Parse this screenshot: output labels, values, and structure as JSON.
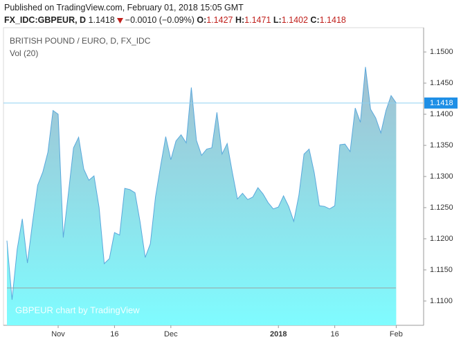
{
  "header": {
    "published": "Published on TradingView.com, February 01, 2018 15:05 GMT",
    "symbol": "FX_IDC:GBPEUR, D",
    "price": "1.1418",
    "change": "−0.0010 (−0.09%)",
    "ohlc": [
      {
        "label": "O:",
        "value": "1.1427"
      },
      {
        "label": "H:",
        "value": "1.1471"
      },
      {
        "label": "L:",
        "value": "1.1402"
      },
      {
        "label": "C:",
        "value": "1.1418"
      }
    ]
  },
  "chart_data": {
    "type": "area",
    "title": "BRITISH POUND / EURO, D, FX_IDC",
    "subtitle": "Vol (20)",
    "watermark": "GBPEUR chart by TradingView",
    "color": "#5aa8dc",
    "x": [
      0,
      1,
      2,
      3,
      4,
      5,
      6,
      7,
      8,
      9,
      10,
      11,
      12,
      13,
      14,
      15,
      16,
      17,
      18,
      19,
      20,
      21,
      22,
      23,
      24,
      25,
      26,
      27,
      28,
      29,
      30,
      31,
      32,
      33,
      34,
      35,
      36,
      37,
      38,
      39,
      40,
      41,
      42,
      43,
      44,
      45,
      46,
      47,
      48,
      49,
      50,
      51,
      52,
      53,
      54,
      55,
      56,
      57,
      58,
      59,
      60,
      61,
      62,
      63,
      64,
      65,
      66,
      67,
      68,
      69,
      70,
      71,
      72,
      73,
      74,
      75,
      76
    ],
    "values": [
      1.1197,
      1.1102,
      1.1183,
      1.1232,
      1.1161,
      1.1226,
      1.1286,
      1.1307,
      1.1339,
      1.1406,
      1.14,
      1.1202,
      1.1273,
      1.1346,
      1.1363,
      1.1312,
      1.1294,
      1.1301,
      1.125,
      1.116,
      1.1168,
      1.121,
      1.1206,
      1.1281,
      1.1279,
      1.1274,
      1.1227,
      1.117,
      1.1192,
      1.1267,
      1.1317,
      1.1364,
      1.1327,
      1.1357,
      1.1367,
      1.1354,
      1.1443,
      1.1358,
      1.1334,
      1.1344,
      1.1346,
      1.1403,
      1.1336,
      1.1353,
      1.1307,
      1.1264,
      1.1273,
      1.1263,
      1.1267,
      1.1282,
      1.1272,
      1.1258,
      1.1248,
      1.1251,
      1.1269,
      1.1252,
      1.1228,
      1.127,
      1.1336,
      1.1344,
      1.1306,
      1.1253,
      1.1252,
      1.1248,
      1.1253,
      1.1351,
      1.1352,
      1.134,
      1.141,
      1.1387,
      1.1476,
      1.1408,
      1.1394,
      1.137,
      1.1406,
      1.143,
      1.1418
    ],
    "last_value": 1.1418,
    "xlim": [
      -0.68,
      81.35
    ],
    "xticks": [
      {
        "value": 10,
        "label": "Nov"
      },
      {
        "value": 21,
        "label": "16"
      },
      {
        "value": 32,
        "label": "Dec"
      },
      {
        "value": 53,
        "label": "2018",
        "bold": true
      },
      {
        "value": 64,
        "label": "16"
      },
      {
        "value": 76,
        "label": "Feb"
      }
    ],
    "ylim": [
      1.1061,
      1.1539
    ],
    "yticks": [
      {
        "value": 1.11,
        "label": "1.1100"
      },
      {
        "value": 1.115,
        "label": "1.1150"
      },
      {
        "value": 1.12,
        "label": "1.1200"
      },
      {
        "value": 1.125,
        "label": "1.1250"
      },
      {
        "value": 1.13,
        "label": "1.1300"
      },
      {
        "value": 1.135,
        "label": "1.1350"
      },
      {
        "value": 1.14,
        "label": "1.1400"
      },
      {
        "value": 1.145,
        "label": "1.1450"
      },
      {
        "value": 1.15,
        "label": "1.1500"
      }
    ],
    "grid": false
  }
}
